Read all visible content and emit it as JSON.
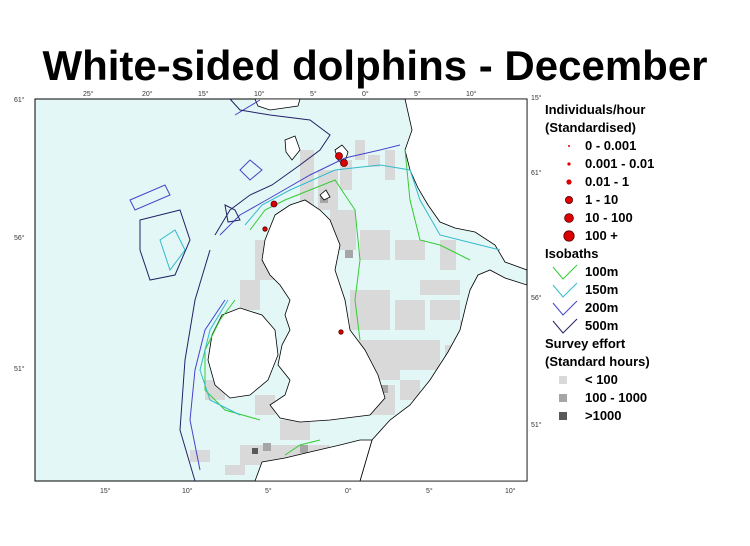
{
  "title": "White-sided dolphins - December",
  "map": {
    "lat_ticks_left": [
      "61°",
      "56°",
      "51°"
    ],
    "lat_ticks_right": [
      "61°",
      "56°",
      "51°"
    ],
    "lon_ticks_top": [
      "25°",
      "20°",
      "15°",
      "10°",
      "5°",
      "0°",
      "5°",
      "10°",
      "15°"
    ],
    "lon_ticks_bottom": [
      "15°",
      "10°",
      "5°",
      "0°",
      "5°",
      "10°"
    ],
    "colors": {
      "sea": "#e4f7f7",
      "land": "#ffffff",
      "coast": "#000000",
      "isobath_100": "#33cc33",
      "isobath_150": "#33bbcc",
      "isobath_200": "#4444cc",
      "isobath_500": "#222266",
      "effort_low": "#d9d9d9",
      "effort_mid": "#a6a6a6",
      "effort_high": "#595959",
      "sighting": "#dd0000"
    }
  },
  "legend": {
    "individuals_title_1": "Individuals/hour",
    "individuals_title_2": "(Standardised)",
    "individuals": [
      "0 - 0.001",
      "0.001 - 0.01",
      "0.01 - 1",
      "1 - 10",
      "10 - 100",
      "100 +"
    ],
    "isobaths_title": "Isobaths",
    "isobaths": [
      "100m",
      "150m",
      "200m",
      "500m"
    ],
    "effort_title_1": "Survey effort",
    "effort_title_2": "(Standard hours)",
    "effort": [
      "< 100",
      "100 - 1000",
      ">1000"
    ]
  }
}
